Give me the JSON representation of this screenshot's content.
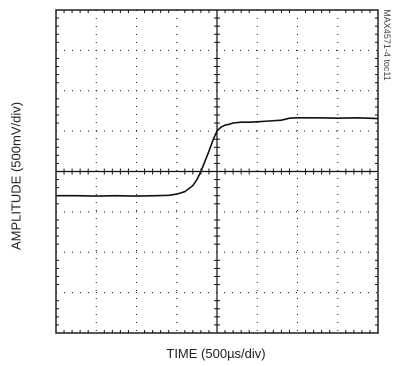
{
  "chart_data": {
    "type": "line",
    "xlabel": "TIME (500µs/div)",
    "ylabel": "AMPLITUDE (500mV/div)",
    "figure_id": "MAX4571-4 toc11",
    "x_divisions": 8,
    "y_divisions": 8,
    "x_units_per_div": "500µs",
    "y_units_per_div": "500mV",
    "xlim_div": [
      0,
      8
    ],
    "ylim_div": [
      -4,
      4
    ],
    "grid": "dotted",
    "series": [
      {
        "x_div": [
          0.0,
          0.5,
          1.0,
          1.5,
          2.0,
          2.5,
          2.8,
          3.0,
          3.2,
          3.4,
          3.5,
          3.6,
          3.7,
          3.8,
          3.9,
          4.0,
          4.1,
          4.2,
          4.3,
          4.4,
          4.6,
          4.8,
          5.0,
          5.3,
          5.6,
          5.8,
          6.0,
          6.5,
          7.0,
          7.5,
          8.0
        ],
        "y_div": [
          -0.6,
          -0.6,
          -0.61,
          -0.6,
          -0.61,
          -0.6,
          -0.59,
          -0.56,
          -0.5,
          -0.35,
          -0.2,
          0.0,
          0.25,
          0.5,
          0.78,
          1.0,
          1.1,
          1.15,
          1.17,
          1.2,
          1.22,
          1.22,
          1.23,
          1.25,
          1.27,
          1.32,
          1.33,
          1.33,
          1.32,
          1.33,
          1.31
        ]
      }
    ]
  }
}
